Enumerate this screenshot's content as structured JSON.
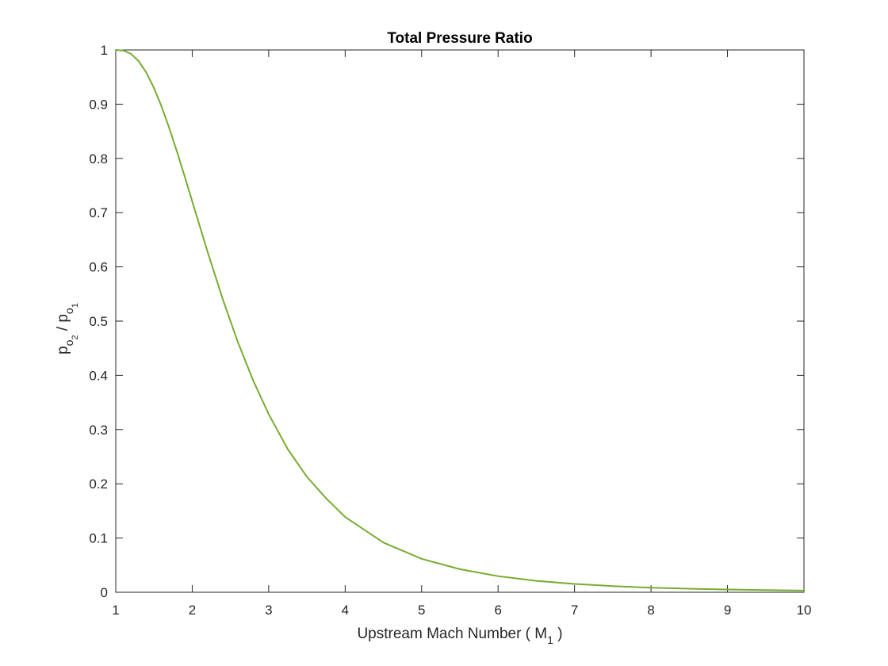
{
  "chart_data": {
    "type": "line",
    "title": "Total Pressure Ratio",
    "xlabel": {
      "prefix": "Upstream Mach Number ( M",
      "subscript": "1",
      "suffix": " )"
    },
    "ylabel": {
      "p": "p",
      "o": "o",
      "sub2": "2",
      "slash": " / ",
      "sub1": "1"
    },
    "xlim": [
      1,
      10
    ],
    "ylim": [
      0,
      1
    ],
    "xticks": [
      "1",
      "2",
      "3",
      "4",
      "5",
      "6",
      "7",
      "8",
      "9",
      "10"
    ],
    "yticks": [
      "0",
      "0.1",
      "0.2",
      "0.3",
      "0.4",
      "0.5",
      "0.6",
      "0.7",
      "0.8",
      "0.9",
      "1"
    ],
    "grid": false,
    "box": true,
    "series": [
      {
        "color": "#77ac30",
        "x": [
          1.0,
          1.1,
          1.2,
          1.3,
          1.4,
          1.5,
          1.6,
          1.7,
          1.8,
          1.9,
          2.0,
          2.2,
          2.4,
          2.6,
          2.8,
          3.0,
          3.25,
          3.5,
          3.75,
          4.0,
          4.5,
          5.0,
          5.5,
          6.0,
          6.5,
          7.0,
          7.5,
          8.0,
          8.5,
          9.0,
          9.5,
          10.0
        ],
        "y": [
          1.0,
          0.9989,
          0.9928,
          0.9794,
          0.9582,
          0.9298,
          0.8952,
          0.8557,
          0.8127,
          0.7674,
          0.7209,
          0.6281,
          0.5401,
          0.4601,
          0.3895,
          0.3283,
          0.2637,
          0.2129,
          0.1733,
          0.1388,
          0.0917,
          0.0617,
          0.0426,
          0.0297,
          0.0211,
          0.0154,
          0.0114,
          0.0085,
          0.0065,
          0.0051,
          0.004,
          0.0031
        ]
      }
    ]
  }
}
